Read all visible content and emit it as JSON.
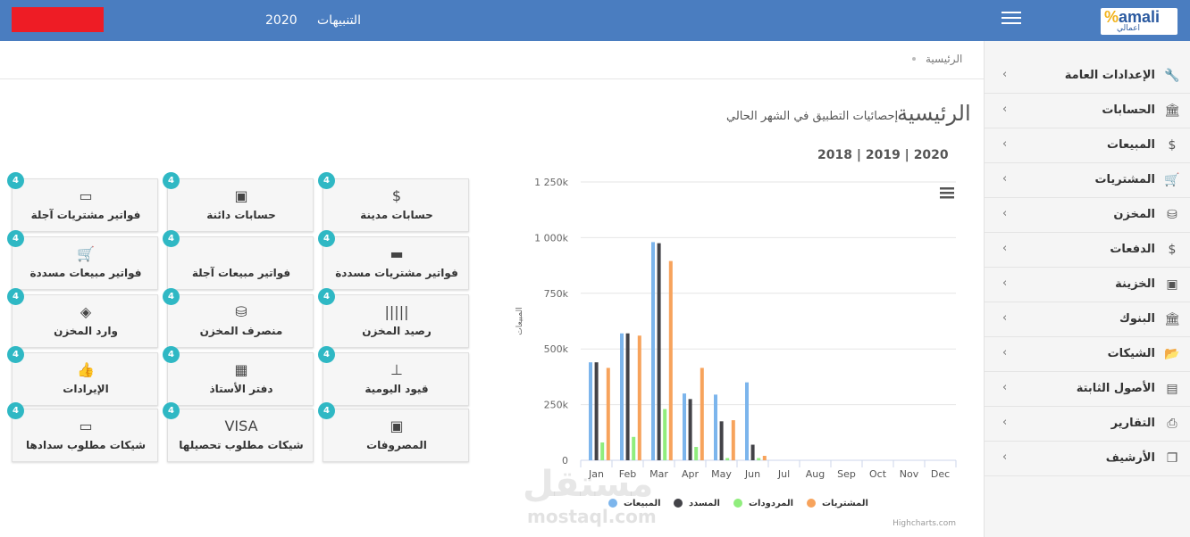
{
  "header": {
    "year": "2020",
    "alerts_label": "التنبيهات",
    "logo_text_main": "amali",
    "logo_text_sub": "اعمالي"
  },
  "breadcrumb": {
    "home": "الرئيسية"
  },
  "page": {
    "title": "الرئيسية",
    "subtitle": "إحصائيات التطبيق في الشهر الحالي",
    "years": [
      "2020",
      "2019",
      "2018"
    ]
  },
  "sidebar": {
    "items": [
      {
        "label": "الإعدادات العامة",
        "icon": "wrench-icon",
        "glyph": "🔧"
      },
      {
        "label": "الحسابات",
        "icon": "bank-icon",
        "glyph": "🏛"
      },
      {
        "label": "المبيعات",
        "icon": "dollar-icon",
        "glyph": "$"
      },
      {
        "label": "المشتريات",
        "icon": "cart-icon",
        "glyph": "🛒"
      },
      {
        "label": "المخزن",
        "icon": "cubes-icon",
        "glyph": "⛁"
      },
      {
        "label": "الدفعات",
        "icon": "dollar-icon",
        "glyph": "$"
      },
      {
        "label": "الخزينة",
        "icon": "money-icon",
        "glyph": "▣"
      },
      {
        "label": "البنوك",
        "icon": "bank-icon",
        "glyph": "🏛"
      },
      {
        "label": "الشيكات",
        "icon": "folder-open-icon",
        "glyph": "📂"
      },
      {
        "label": "الأصول الثابتة",
        "icon": "archive-box-icon",
        "glyph": "▤"
      },
      {
        "label": "التقارير",
        "icon": "print-icon",
        "glyph": "⎙"
      },
      {
        "label": "الأرشيف",
        "icon": "copy-icon",
        "glyph": "❐"
      }
    ]
  },
  "cards": [
    {
      "label": "حسابات مدينة",
      "icon": "dollar-icon",
      "glyph": "$",
      "badge": "4"
    },
    {
      "label": "حسابات دائنة",
      "icon": "money-icon",
      "glyph": "▣",
      "badge": "4"
    },
    {
      "label": "فواتير مشتريات آجلة",
      "icon": "battery-low-icon",
      "glyph": "▭",
      "badge": "4"
    },
    {
      "label": "فواتير مشتريات مسددة",
      "icon": "battery-full-icon",
      "glyph": "▬",
      "badge": "4"
    },
    {
      "label": "فواتير مبيعات آجلة",
      "icon": "",
      "glyph": "",
      "badge": "4"
    },
    {
      "label": "فواتير مبيعات مسددة",
      "icon": "cart-icon",
      "glyph": "🛒",
      "badge": "4"
    },
    {
      "label": "رصيد المخزن",
      "icon": "barcode-icon",
      "glyph": "|||||",
      "badge": "4"
    },
    {
      "label": "منصرف المخزن",
      "icon": "cubes-icon",
      "glyph": "⛁",
      "badge": "4"
    },
    {
      "label": "وارد المخزن",
      "icon": "cube-icon",
      "glyph": "◈",
      "badge": "4"
    },
    {
      "label": "قيود اليومية",
      "icon": "sitemap-icon",
      "glyph": "⊥",
      "badge": "4"
    },
    {
      "label": "دفتر الأستاذ",
      "icon": "calendar-icon",
      "glyph": "▦",
      "badge": "4"
    },
    {
      "label": "الإيرادات",
      "icon": "thumbs-up-icon",
      "glyph": "👍",
      "badge": "4"
    },
    {
      "label": "المصروفات",
      "icon": "money-icon",
      "glyph": "▣",
      "badge": "4"
    },
    {
      "label": "شيكات مطلوب تحصيلها",
      "icon": "visa-card-icon",
      "glyph": "VISA",
      "badge": "4"
    },
    {
      "label": "شيكات مطلوب سدادها",
      "icon": "credit-card-icon",
      "glyph": "▭",
      "badge": "4"
    }
  ],
  "chart_data": {
    "type": "bar",
    "categories": [
      "Jan",
      "Feb",
      "Mar",
      "Apr",
      "May",
      "Jun",
      "Jul",
      "Aug",
      "Sep",
      "Oct",
      "Nov",
      "Dec"
    ],
    "series": [
      {
        "name": "المبيعات",
        "color": "#7cb5ec",
        "values": [
          440000,
          570000,
          980000,
          300000,
          295000,
          350000,
          0,
          0,
          0,
          0,
          0,
          0
        ]
      },
      {
        "name": "المسدد",
        "color": "#434348",
        "values": [
          440000,
          570000,
          975000,
          275000,
          175000,
          70000,
          0,
          0,
          0,
          0,
          0,
          0
        ]
      },
      {
        "name": "المردودات",
        "color": "#90ed7d",
        "values": [
          80000,
          105000,
          230000,
          60000,
          10000,
          10000,
          0,
          0,
          0,
          0,
          0,
          0
        ]
      },
      {
        "name": "المشتريات",
        "color": "#f7a35c",
        "values": [
          415000,
          560000,
          895000,
          415000,
          180000,
          20000,
          0,
          0,
          0,
          0,
          0,
          0
        ]
      }
    ],
    "ylabel": "المبيعات",
    "ylim": [
      0,
      1250000
    ],
    "yticks": [
      {
        "value": 0,
        "label": "0"
      },
      {
        "value": 250000,
        "label": "250k"
      },
      {
        "value": 500000,
        "label": "500k"
      },
      {
        "value": 750000,
        "label": "750k"
      },
      {
        "value": 1000000,
        "label": "1 000k"
      },
      {
        "value": 1250000,
        "label": "1 250k"
      }
    ],
    "grid": true,
    "legend": "bottom",
    "credit": "Highcharts.com"
  },
  "watermark": {
    "main": "مستقل",
    "sub": "mostaql.com"
  }
}
